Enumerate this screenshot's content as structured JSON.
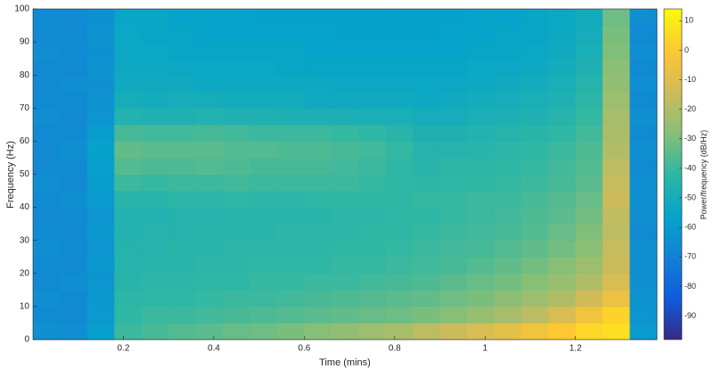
{
  "chart_data": {
    "type": "heatmap",
    "xlabel": "Time (mins)",
    "ylabel": "Frequency (Hz)",
    "colorbar_label": "Power/frequency (dB/Hz)",
    "x": [
      0.03,
      0.09,
      0.15,
      0.21,
      0.27,
      0.33,
      0.39,
      0.45,
      0.51,
      0.57,
      0.63,
      0.69,
      0.75,
      0.81,
      0.87,
      0.93,
      0.99,
      1.05,
      1.11,
      1.17,
      1.23,
      1.29,
      1.35
    ],
    "y": [
      2.5,
      7.5,
      12.5,
      17.5,
      22.5,
      27.5,
      32.5,
      37.5,
      42.5,
      47.5,
      52.5,
      57.5,
      62.5,
      67.5,
      72.5,
      77.5,
      82.5,
      87.5,
      92.5,
      97.5
    ],
    "z": [
      [
        -64,
        -65,
        -58,
        -40,
        -38,
        -36,
        -35,
        -33,
        -32,
        -30,
        -28,
        -26,
        -24,
        -22,
        -18,
        -15,
        -12,
        -8,
        -4,
        0,
        4,
        6,
        -60
      ],
      [
        -66,
        -67,
        -60,
        -42,
        -40,
        -40,
        -39,
        -38,
        -37,
        -36,
        -35,
        -34,
        -33,
        -32,
        -30,
        -28,
        -25,
        -22,
        -18,
        -12,
        -4,
        3,
        -62
      ],
      [
        -65,
        -66,
        -61,
        -43,
        -42,
        -42,
        -41,
        -40,
        -40,
        -39,
        -38,
        -37,
        -36,
        -35,
        -34,
        -32,
        -30,
        -27,
        -24,
        -20,
        -14,
        -6,
        -63
      ],
      [
        -67,
        -65,
        -62,
        -44,
        -43,
        -43,
        -42,
        -42,
        -41,
        -41,
        -40,
        -40,
        -39,
        -38,
        -37,
        -35,
        -33,
        -31,
        -28,
        -25,
        -20,
        -12,
        -64
      ],
      [
        -66,
        -67,
        -61,
        -45,
        -44,
        -44,
        -43,
        -43,
        -42,
        -42,
        -42,
        -41,
        -41,
        -40,
        -39,
        -38,
        -36,
        -34,
        -31,
        -28,
        -24,
        -15,
        -65
      ],
      [
        -65,
        -66,
        -62,
        -45,
        -45,
        -44,
        -44,
        -43,
        -43,
        -43,
        -43,
        -42,
        -42,
        -41,
        -40,
        -39,
        -38,
        -36,
        -34,
        -31,
        -27,
        -16,
        -64
      ],
      [
        -66,
        -67,
        -61,
        -46,
        -45,
        -45,
        -44,
        -44,
        -44,
        -43,
        -43,
        -43,
        -42,
        -42,
        -41,
        -40,
        -39,
        -38,
        -36,
        -33,
        -29,
        -18,
        -66
      ],
      [
        -67,
        -66,
        -62,
        -46,
        -46,
        -45,
        -45,
        -44,
        -44,
        -44,
        -44,
        -43,
        -43,
        -42,
        -42,
        -41,
        -40,
        -39,
        -37,
        -35,
        -31,
        -17,
        -65
      ],
      [
        -66,
        -65,
        -60,
        -44,
        -44,
        -43,
        -43,
        -42,
        -43,
        -43,
        -42,
        -42,
        -42,
        -42,
        -41,
        -41,
        -40,
        -40,
        -38,
        -36,
        -33,
        -15,
        -64
      ],
      [
        -65,
        -67,
        -59,
        -40,
        -41,
        -40,
        -40,
        -39,
        -40,
        -40,
        -40,
        -40,
        -41,
        -42,
        -43,
        -42,
        -42,
        -41,
        -40,
        -38,
        -35,
        -16,
        -65
      ],
      [
        -66,
        -66,
        -58,
        -36,
        -37,
        -37,
        -36,
        -37,
        -38,
        -38,
        -38,
        -39,
        -40,
        -42,
        -44,
        -43,
        -43,
        -42,
        -41,
        -39,
        -36,
        -18,
        -66
      ],
      [
        -67,
        -65,
        -57,
        -34,
        -35,
        -35,
        -35,
        -36,
        -36,
        -37,
        -37,
        -38,
        -39,
        -41,
        -45,
        -45,
        -44,
        -43,
        -42,
        -40,
        -37,
        -20,
        -65
      ],
      [
        -66,
        -66,
        -59,
        -38,
        -39,
        -39,
        -38,
        -39,
        -40,
        -40,
        -40,
        -41,
        -42,
        -44,
        -47,
        -47,
        -46,
        -45,
        -44,
        -42,
        -39,
        -21,
        -66
      ],
      [
        -65,
        -67,
        -62,
        -46,
        -47,
        -47,
        -46,
        -47,
        -47,
        -48,
        -48,
        -48,
        -49,
        -49,
        -50,
        -50,
        -49,
        -48,
        -47,
        -45,
        -41,
        -22,
        -64
      ],
      [
        -66,
        -66,
        -63,
        -50,
        -51,
        -50,
        -50,
        -51,
        -51,
        -51,
        -52,
        -52,
        -52,
        -52,
        -53,
        -52,
        -51,
        -50,
        -49,
        -47,
        -43,
        -24,
        -66
      ],
      [
        -67,
        -65,
        -64,
        -52,
        -52,
        -52,
        -53,
        -53,
        -53,
        -53,
        -53,
        -54,
        -54,
        -54,
        -54,
        -54,
        -53,
        -52,
        -51,
        -49,
        -45,
        -26,
        -65
      ],
      [
        -66,
        -67,
        -63,
        -53,
        -53,
        -54,
        -54,
        -54,
        -54,
        -55,
        -55,
        -55,
        -55,
        -55,
        -55,
        -55,
        -54,
        -54,
        -53,
        -51,
        -47,
        -27,
        -66
      ],
      [
        -65,
        -66,
        -64,
        -54,
        -54,
        -55,
        -55,
        -55,
        -55,
        -55,
        -56,
        -56,
        -56,
        -56,
        -56,
        -56,
        -55,
        -55,
        -54,
        -52,
        -49,
        -29,
        -65
      ],
      [
        -67,
        -66,
        -63,
        -54,
        -55,
        -55,
        -56,
        -56,
        -56,
        -56,
        -56,
        -57,
        -57,
        -57,
        -57,
        -56,
        -56,
        -55,
        -55,
        -53,
        -50,
        -30,
        -66
      ],
      [
        -66,
        -67,
        -64,
        -55,
        -55,
        -56,
        -56,
        -56,
        -57,
        -57,
        -57,
        -57,
        -57,
        -57,
        -57,
        -57,
        -56,
        -56,
        -55,
        -54,
        -51,
        -32,
        -65
      ]
    ],
    "xlim": [
      0,
      1.38
    ],
    "ylim": [
      0,
      100
    ],
    "xticks": [
      0.2,
      0.4,
      0.6,
      0.8,
      1,
      1.2
    ],
    "yticks": [
      0,
      10,
      20,
      30,
      40,
      50,
      60,
      70,
      80,
      90,
      100
    ],
    "clim": [
      -98,
      14
    ],
    "cticks": [
      -90,
      -80,
      -70,
      -60,
      -50,
      -40,
      -30,
      -20,
      -10,
      0,
      10
    ],
    "colorscale": [
      "#352a87",
      "#0f5cdd",
      "#1481d6",
      "#06a4ca",
      "#2eb7a4",
      "#87bf77",
      "#d1bb59",
      "#fec832",
      "#f9fb0e"
    ]
  }
}
